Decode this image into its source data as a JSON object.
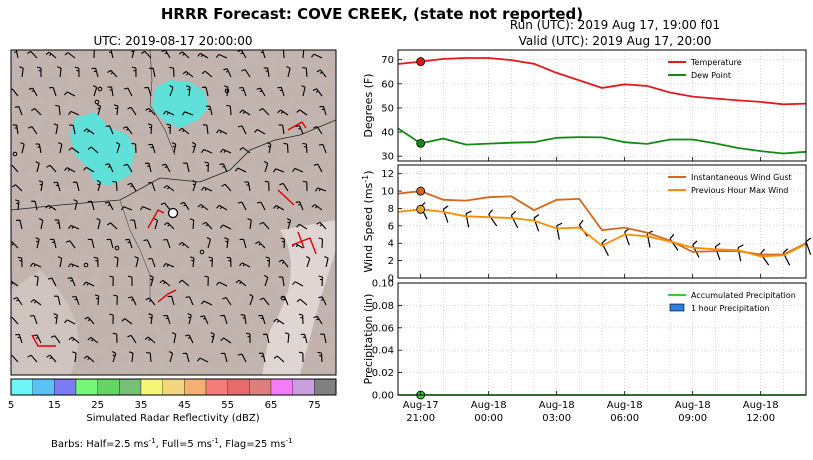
{
  "title": "HRRR Forecast: COVE CREEK, (state not reported)",
  "map": {
    "subtitle": "UTC: 2019-08-17 20:00:00",
    "colorbar": {
      "label": "Simulated Radar Reflectivity (dBZ)",
      "ticks": [
        "5",
        "15",
        "25",
        "35",
        "45",
        "55",
        "65",
        "75"
      ],
      "colors": [
        "#6ef6f6",
        "#5bc2f6",
        "#7b7bf6",
        "#76f776",
        "#63d563",
        "#76c076",
        "#f6f676",
        "#f2d780",
        "#f2b073",
        "#f67b7b",
        "#e86a6a",
        "#e07e7e",
        "#f67bf6",
        "#c8a0e0",
        "#808080"
      ]
    },
    "barbs_note_parts": [
      "Barbs: Half=2.5 ms",
      "-1",
      ", Full=5 ms",
      "-1",
      ", Flag=25 ms",
      "-1"
    ]
  },
  "run_info": {
    "run": "Run (UTC): 2019 Aug 17, 19:00 f01",
    "valid": "Valid (UTC): 2019 Aug 17, 20:00"
  },
  "chart_data": [
    {
      "type": "line",
      "ylabel": "Degrees (F)",
      "ylim": [
        28,
        74
      ],
      "yticks": [
        30,
        40,
        50,
        60,
        70
      ],
      "x_hours_from_start": [
        0,
        1,
        2,
        3,
        4,
        5,
        6,
        7,
        8,
        9,
        10,
        11,
        12,
        13,
        14,
        15,
        16,
        17,
        18
      ],
      "series": [
        {
          "name": "Temperature",
          "color": "#e31a1c",
          "values": [
            68.2,
            69.2,
            70.3,
            70.7,
            70.7,
            69.8,
            68.3,
            64.5,
            61.4,
            58.3,
            59.8,
            59.1,
            56.4,
            54.7,
            53.9,
            53.1,
            52.5,
            51.5,
            51.8
          ]
        },
        {
          "name": "Dew Point",
          "color": "#138a13",
          "values": [
            41.5,
            35.3,
            37.3,
            34.8,
            35.2,
            35.6,
            35.8,
            37.6,
            37.9,
            37.8,
            35.8,
            35.1,
            36.9,
            36.9,
            35.3,
            33.4,
            32.1,
            31.1,
            31.8
          ]
        }
      ],
      "legend": "top-right",
      "grid": true
    },
    {
      "type": "line",
      "ylabel": "Wind Speed (ms",
      "ylabel_sup": "-1",
      "ylabel_end": ")",
      "ylim": [
        0,
        13
      ],
      "yticks": [
        0,
        2,
        4,
        6,
        8,
        10,
        12
      ],
      "x_hours_from_start": [
        0,
        1,
        2,
        3,
        4,
        5,
        6,
        7,
        8,
        9,
        10,
        11,
        12,
        13,
        14,
        15,
        16,
        17,
        18
      ],
      "series": [
        {
          "name": "Instantaneous Wind Gust",
          "color": "#d2691e",
          "values": [
            9.7,
            10.0,
            9.0,
            8.9,
            9.3,
            9.4,
            7.8,
            9.0,
            9.1,
            5.5,
            5.8,
            5.2,
            4.3,
            3.0,
            3.1,
            3.1,
            2.7,
            2.7,
            4.0
          ]
        },
        {
          "name": "Previous Hour Max Wind",
          "color": "#ff8c00",
          "values": [
            7.6,
            7.9,
            7.6,
            7.1,
            7.0,
            6.9,
            6.6,
            5.7,
            5.8,
            3.7,
            5.0,
            4.8,
            4.2,
            3.5,
            3.3,
            3.2,
            2.5,
            2.6,
            3.9
          ]
        }
      ],
      "legend": "top-right",
      "grid": true
    },
    {
      "type": "line",
      "ylabel": "Precipitation (in)",
      "ylim": [
        0,
        0.1
      ],
      "yticks": [
        "0.00",
        "0.02",
        "0.04",
        "0.06",
        "0.08",
        "0.10"
      ],
      "x_hours_from_start": [
        0,
        1,
        2,
        3,
        4,
        5,
        6,
        7,
        8,
        9,
        10,
        11,
        12,
        13,
        14,
        15,
        16,
        17,
        18
      ],
      "series": [
        {
          "name": "Accumulated Precipitation",
          "color": "#33cc33",
          "values": [
            0,
            0,
            0,
            0,
            0,
            0,
            0,
            0,
            0,
            0,
            0,
            0,
            0,
            0,
            0,
            0,
            0,
            0,
            0
          ]
        },
        {
          "name": "1 hour Precipitation",
          "color": "#2f7fdc",
          "values": [
            0,
            0,
            0,
            0,
            0,
            0,
            0,
            0,
            0,
            0,
            0,
            0,
            0,
            0,
            0,
            0,
            0,
            0,
            0
          ]
        }
      ],
      "legend": "top-right",
      "grid": true
    }
  ],
  "x_ticks": [
    {
      "hour": 1,
      "l1": "Aug-17",
      "l2": "21:00"
    },
    {
      "hour": 4,
      "l1": "Aug-18",
      "l2": "00:00"
    },
    {
      "hour": 7,
      "l1": "Aug-18",
      "l2": "03:00"
    },
    {
      "hour": 10,
      "l1": "Aug-18",
      "l2": "06:00"
    },
    {
      "hour": 13,
      "l1": "Aug-18",
      "l2": "09:00"
    },
    {
      "hour": 16,
      "l1": "Aug-18",
      "l2": "12:00"
    }
  ]
}
